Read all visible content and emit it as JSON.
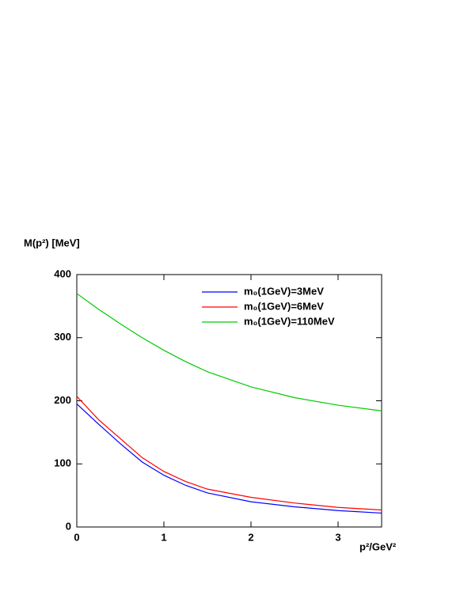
{
  "chart_data": {
    "type": "line",
    "y_label": "M(p²) [MeV]",
    "x_label": "p²/GeV²",
    "x": [
      0,
      0.25,
      0.5,
      0.75,
      1,
      1.25,
      1.5,
      2,
      2.5,
      3,
      3.5
    ],
    "series": [
      {
        "name": "m₀(1GeV)=3MeV",
        "color": "#0000ff",
        "values": [
          195,
          163,
          132,
          103,
          82,
          66,
          54,
          40,
          32,
          26,
          22
        ]
      },
      {
        "name": "m₀(1GeV)=6MeV",
        "color": "#ff0000",
        "values": [
          207,
          170,
          140,
          110,
          88,
          72,
          60,
          47,
          38,
          31,
          27
        ]
      },
      {
        "name": "m₀(1GeV)=110MeV",
        "color": "#00cc00",
        "values": [
          370,
          345,
          322,
          300,
          280,
          262,
          246,
          222,
          205,
          193,
          184
        ]
      }
    ],
    "xlim": [
      0,
      3.5
    ],
    "ylim": [
      0,
      400
    ],
    "xticks": [
      0,
      1,
      2,
      3
    ],
    "yticks": [
      0,
      100,
      200,
      300,
      400
    ],
    "legend": "top-right"
  }
}
